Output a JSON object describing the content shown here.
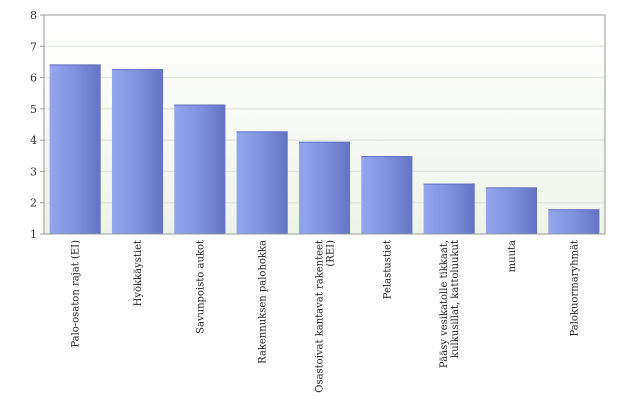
{
  "chart_data": {
    "type": "bar",
    "title": "",
    "xlabel": "",
    "ylabel": "",
    "ylim": [
      1,
      8
    ],
    "yticks": [
      1,
      2,
      3,
      4,
      5,
      6,
      7,
      8
    ],
    "grid": true,
    "legend": "none",
    "categories": [
      [
        "Palo-osaton rajat (EI)"
      ],
      [
        "Hyökkäystiet"
      ],
      [
        "Savunpoisto aukot"
      ],
      [
        "Rakennuksen palohokka"
      ],
      [
        "Osastoivat kantavat rakenteet",
        "(REI)"
      ],
      [
        "Pelastustiet"
      ],
      [
        "Pääsy vesikatolle tikkaat,",
        "kulkusillat, kattoluukut"
      ],
      [
        "muuta"
      ],
      [
        "Palokuormaryhmät"
      ]
    ],
    "values": [
      6.42,
      6.27,
      5.14,
      4.28,
      3.95,
      3.49,
      2.61,
      2.49,
      1.79
    ],
    "colors": {
      "bar_light": "#95a5ec",
      "bar_mid": "#8294e1",
      "bar_dark": "#6473c4",
      "plot_bg_top": "#ffffff",
      "plot_bg_bottom": "#eef3ea",
      "axis": "#999999",
      "grid": "#dde3d8"
    }
  }
}
